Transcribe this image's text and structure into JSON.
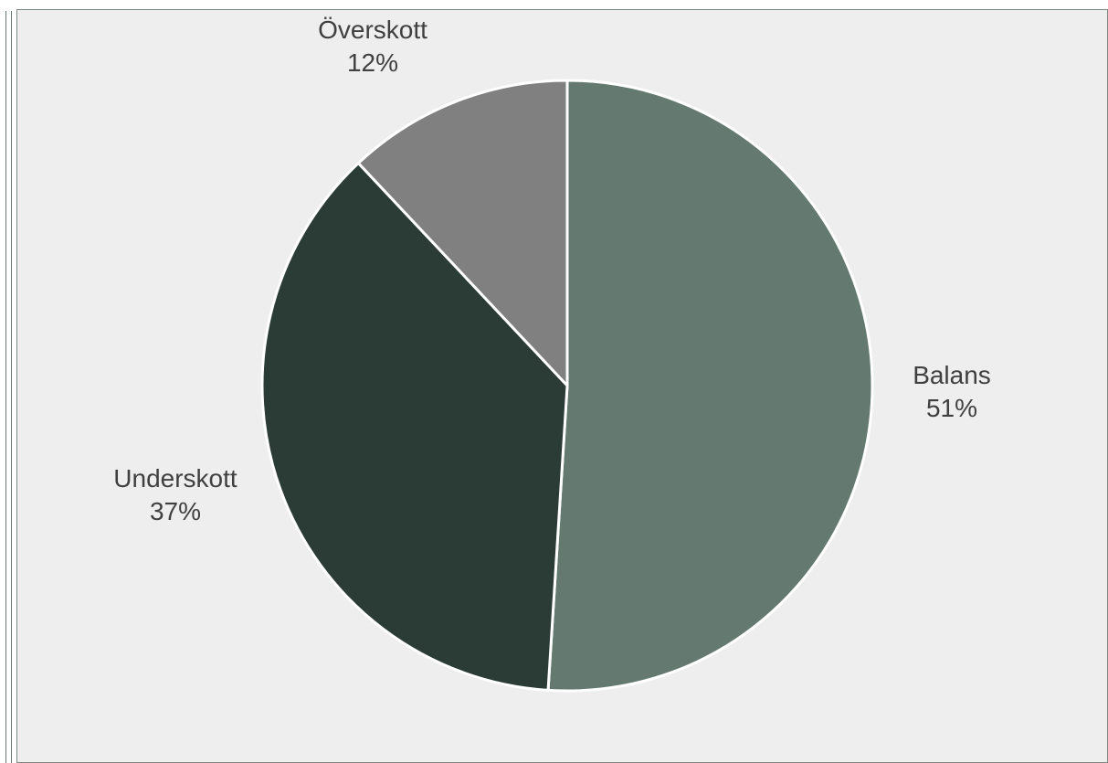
{
  "header": {
    "caption": ""
  },
  "chart_data": {
    "type": "pie",
    "title": "",
    "slices": [
      {
        "label": "Balans",
        "value": 51,
        "value_label": "51%",
        "color": "#647a70"
      },
      {
        "label": "Underskott",
        "value": 37,
        "value_label": "37%",
        "color": "#2b3b36"
      },
      {
        "label": "Överskott",
        "value": 12,
        "value_label": "12%",
        "color": "#808080"
      }
    ],
    "start": "12 o'clock",
    "direction": "clockwise",
    "legend": "none (labels outside slices)"
  }
}
